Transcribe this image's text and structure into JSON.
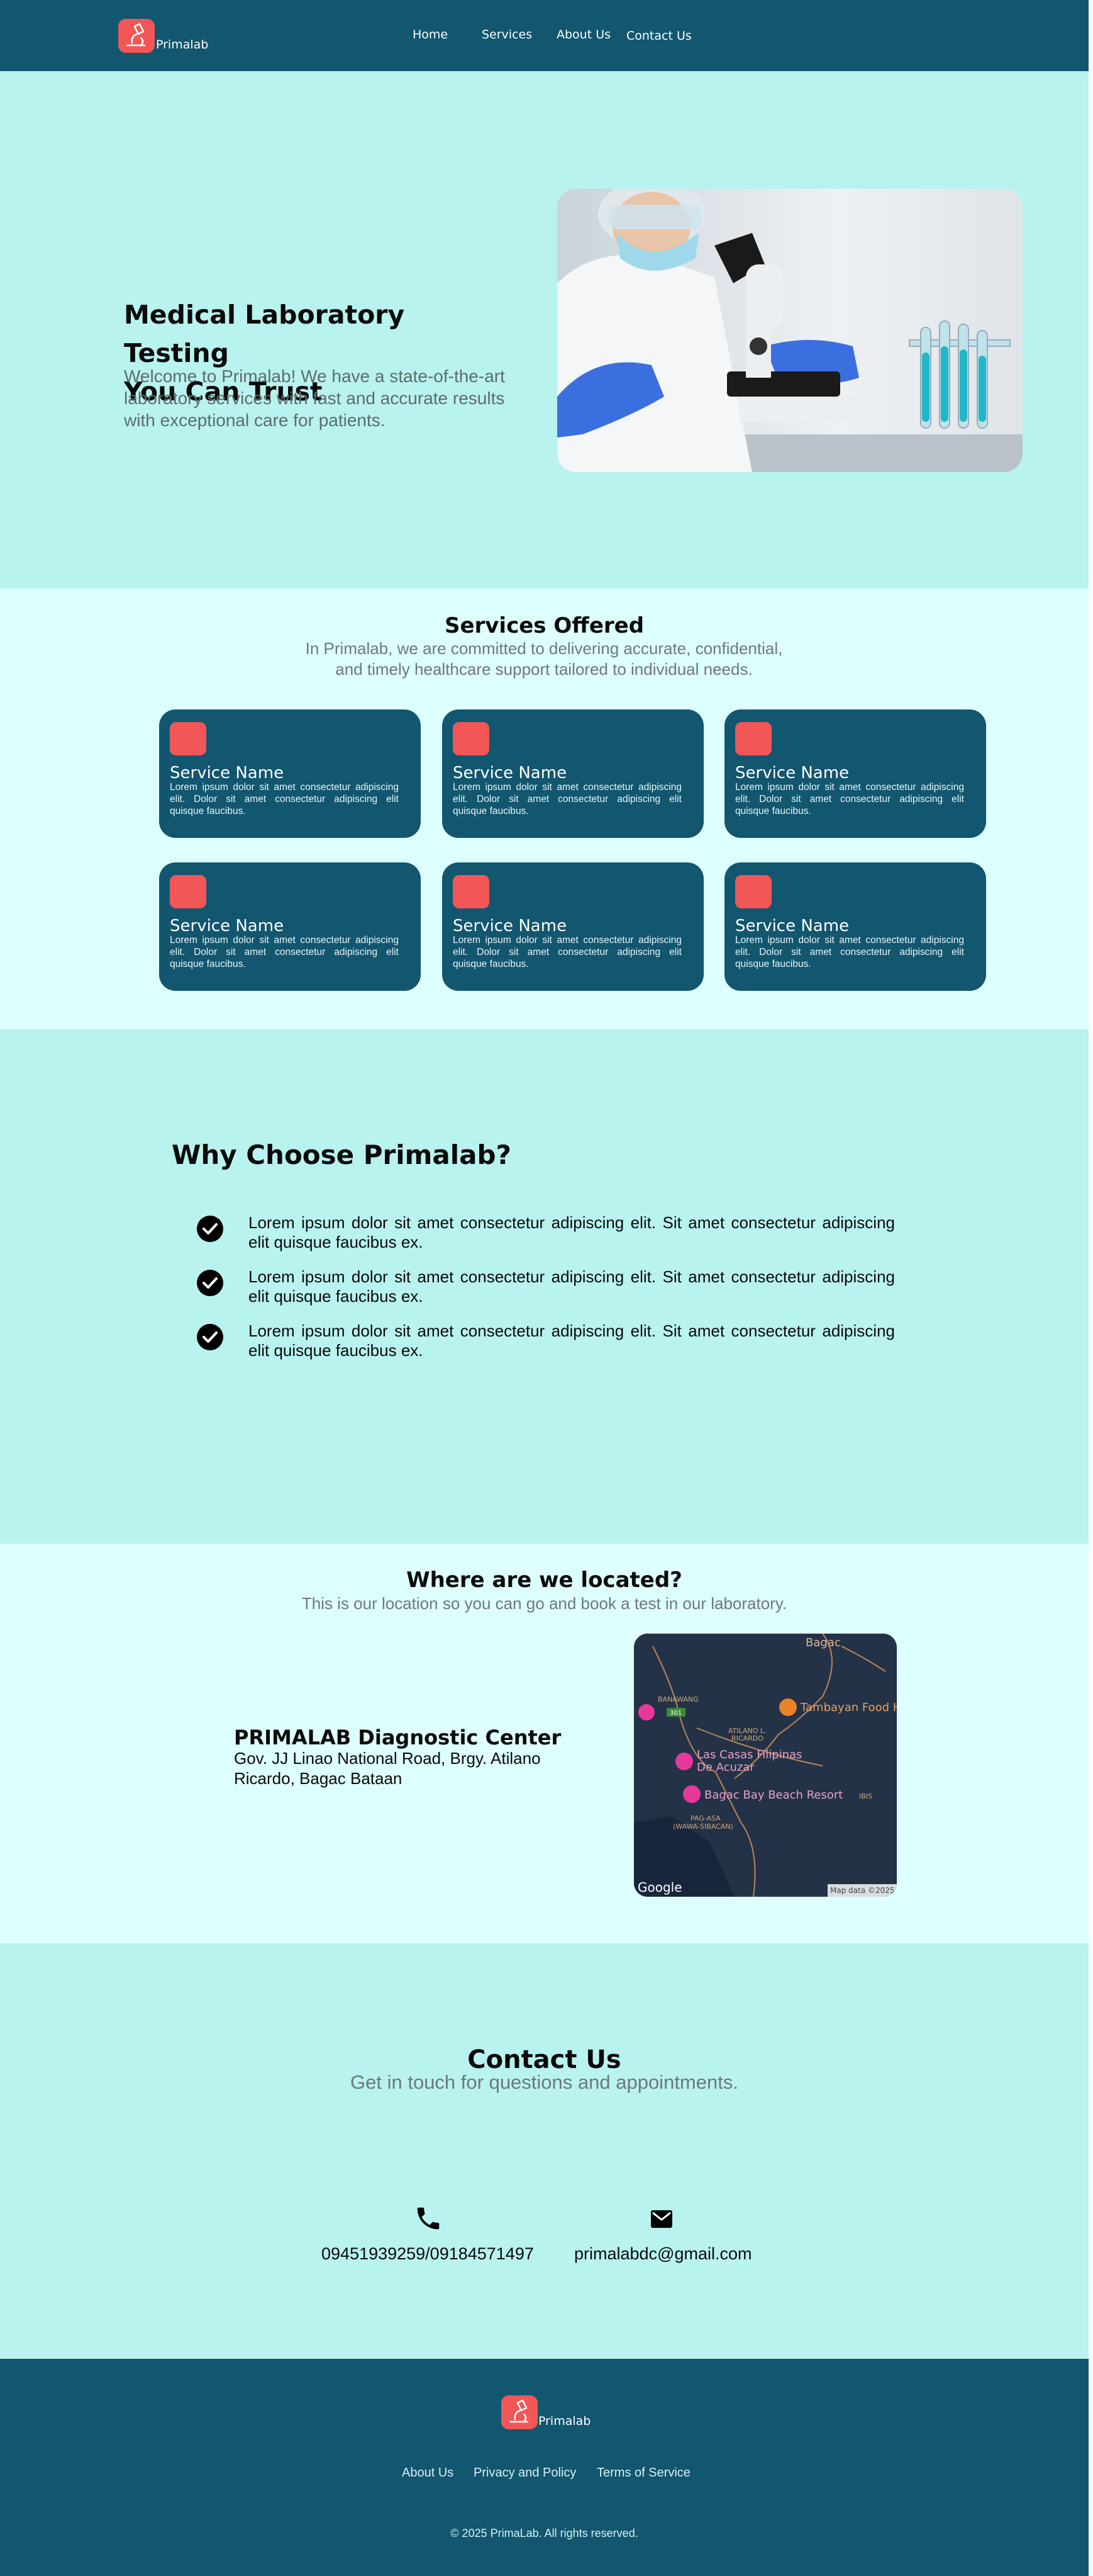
{
  "nav": {
    "brand": "Primalab",
    "links": [
      "Home",
      "Services",
      "About Us",
      "Contact Us"
    ]
  },
  "hero": {
    "title_line1": "Medical Laboratory Testing",
    "title_line2": "You Can Trust",
    "subtitle": "Welcome to Primalab! We have a state-of-the-art laboratory services with fast and accurate results with exceptional care for patients."
  },
  "services": {
    "title": "Services  Offered",
    "subtitle": "In Primalab, we are committed to delivering accurate, confidential, and timely healthcare support tailored to individual needs.",
    "cards": [
      {
        "name": "Service Name",
        "desc": "Lorem ipsum dolor sit amet consectetur adipiscing elit. Dolor sit amet consectetur adipiscing elit quisque faucibus."
      },
      {
        "name": "Service Name",
        "desc": "Lorem ipsum dolor sit amet consectetur adipiscing elit. Dolor sit amet consectetur adipiscing elit quisque faucibus."
      },
      {
        "name": "Service Name",
        "desc": "Lorem ipsum dolor sit amet consectetur adipiscing elit. Dolor sit amet consectetur adipiscing elit quisque faucibus."
      },
      {
        "name": "Service Name",
        "desc": "Lorem ipsum dolor sit amet consectetur adipiscing elit. Dolor sit amet consectetur adipiscing elit quisque faucibus."
      },
      {
        "name": "Service Name",
        "desc": "Lorem ipsum dolor sit amet consectetur adipiscing elit. Dolor sit amet consectetur adipiscing elit quisque faucibus."
      },
      {
        "name": "Service Name",
        "desc": "Lorem ipsum dolor sit amet consectetur adipiscing elit. Dolor sit amet consectetur adipiscing elit quisque faucibus."
      }
    ]
  },
  "why": {
    "title": "Why Choose Primalab?",
    "items": [
      "Lorem ipsum dolor sit amet consectetur adipiscing elit. Sit amet consectetur adipiscing elit quisque faucibus ex.",
      "Lorem ipsum dolor sit amet consectetur adipiscing elit. Sit amet consectetur adipiscing elit quisque faucibus ex.",
      "Lorem ipsum dolor sit amet consectetur adipiscing elit. Sit amet consectetur adipiscing elit quisque faucibus ex."
    ]
  },
  "location": {
    "title": "Where are we located?",
    "subtitle": "This is our location so you can go and book a test in our laboratory.",
    "name": "PRIMALAB Diagnostic Center",
    "address": "Gov. JJ Linao National Road, Brgy. Atilano Ricardo, Bagac Bataan",
    "map": {
      "labels": {
        "bagac": "Bagac",
        "banawang": "BANAWANG",
        "road_shield": "301",
        "atilano": "ATILANO L.",
        "ricardo": "RICARDO",
        "tambayan": "Tambayan Food H",
        "las_casas_1": "Las Casas Filipinas",
        "las_casas_2": "De Acuzar",
        "bagac_bay": "Bagac Bay Beach Resort",
        "ibis": "IBIS",
        "pag_asa_1": "PAG-ASA",
        "pag_asa_2": "(WAWA-SIBACAN)",
        "google": "Google",
        "map_data": "Map data ©2025"
      }
    }
  },
  "contact": {
    "title": "Contact Us",
    "subtitle": "Get in touch for questions and appointments.",
    "phone": "09451939259/09184571497",
    "email": "primalabdc@gmail.com"
  },
  "footer": {
    "brand": "Primalab",
    "links": [
      "About Us",
      "Privacy and Policy",
      "Terms of Service"
    ],
    "copyright": "© 2025 PrimaLab. All rights reserved."
  },
  "colors": {
    "primary": "#12566f",
    "accent": "#f25657",
    "mint": "#b8f3ef",
    "mint_light": "#ddfffd"
  }
}
